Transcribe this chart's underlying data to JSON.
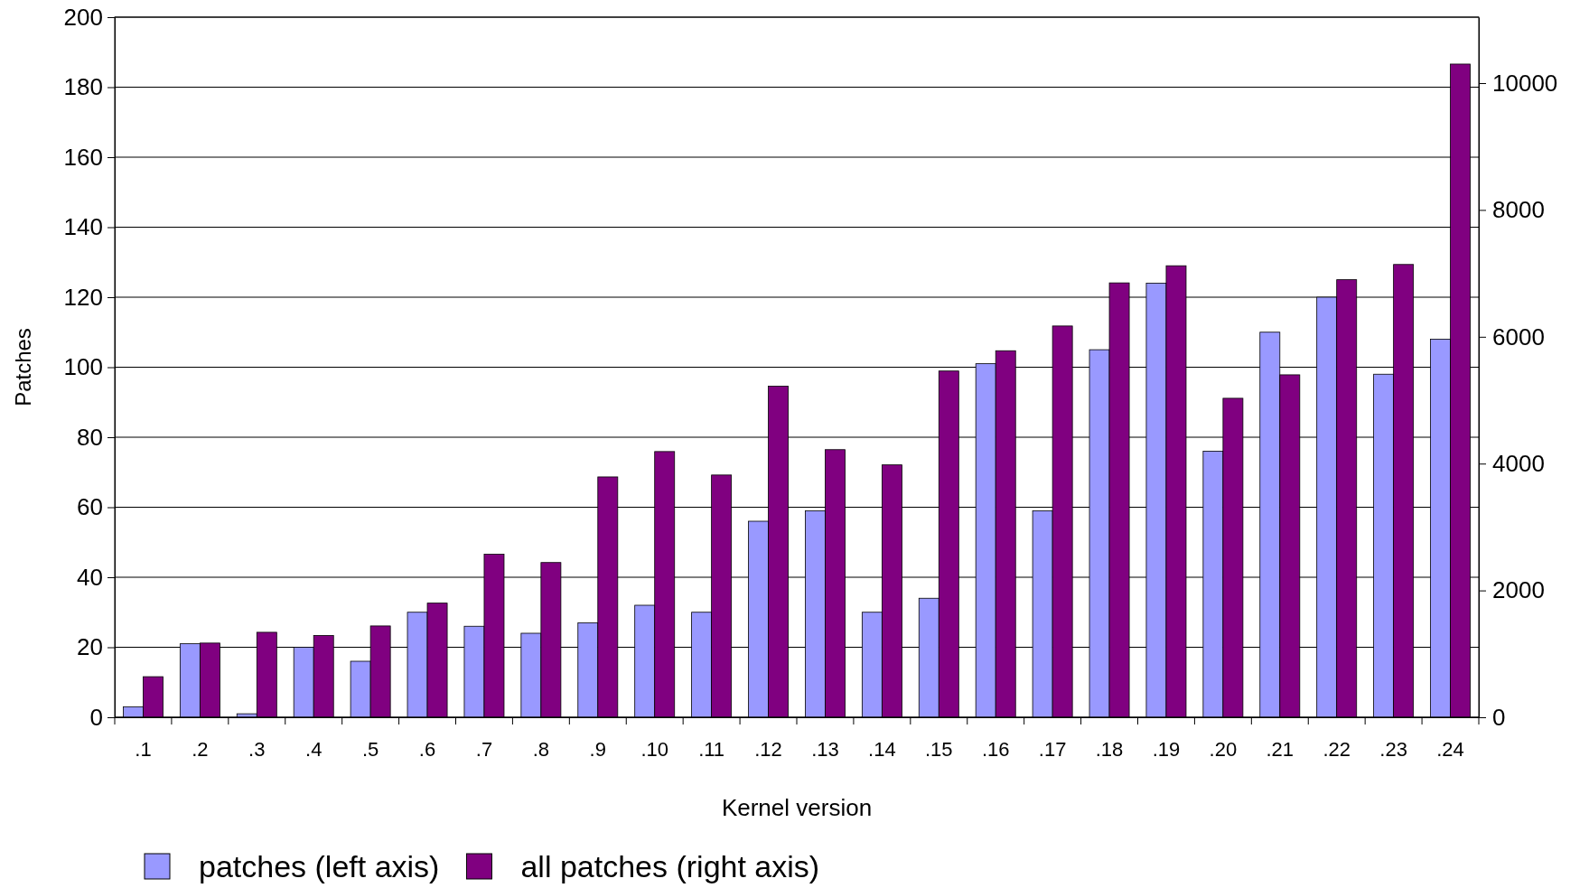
{
  "chart_data": {
    "type": "bar",
    "xlabel": "Kernel version",
    "ylabel": "Patches",
    "categories": [
      ".1",
      ".2",
      ".3",
      ".4",
      ".5",
      ".6",
      ".7",
      ".8",
      ".9",
      ".10",
      ".11",
      ".12",
      ".13",
      ".14",
      ".15",
      ".16",
      ".17",
      ".18",
      ".19",
      ".20",
      ".21",
      ".22",
      ".23",
      ".24"
    ],
    "series": [
      {
        "name": "patches (left axis)",
        "color": "#9999ff",
        "values": [
          3,
          21,
          1,
          20,
          16,
          30,
          26,
          24,
          27,
          32,
          30,
          56,
          59,
          30,
          34,
          101,
          59,
          105,
          124,
          76,
          110,
          120,
          98,
          108
        ]
      },
      {
        "name": "all patches (right axis)",
        "color": "#800080",
        "axis": "y2",
        "values": [
          640,
          1170,
          1340,
          1290,
          1440,
          1800,
          2570,
          2440,
          3790,
          4190,
          3820,
          5220,
          4220,
          3980,
          5460,
          5780,
          6170,
          6850,
          7120,
          5030,
          5400,
          6900,
          7140,
          10300
        ]
      }
    ],
    "ylim": [
      0,
      200
    ],
    "yticks": [
      0,
      20,
      40,
      60,
      80,
      100,
      120,
      140,
      160,
      180,
      200
    ],
    "y2lim": [
      0,
      11040
    ],
    "y2ticks": [
      0,
      2000,
      4000,
      6000,
      8000,
      10000
    ],
    "grid": "y",
    "legend": "bottom"
  }
}
